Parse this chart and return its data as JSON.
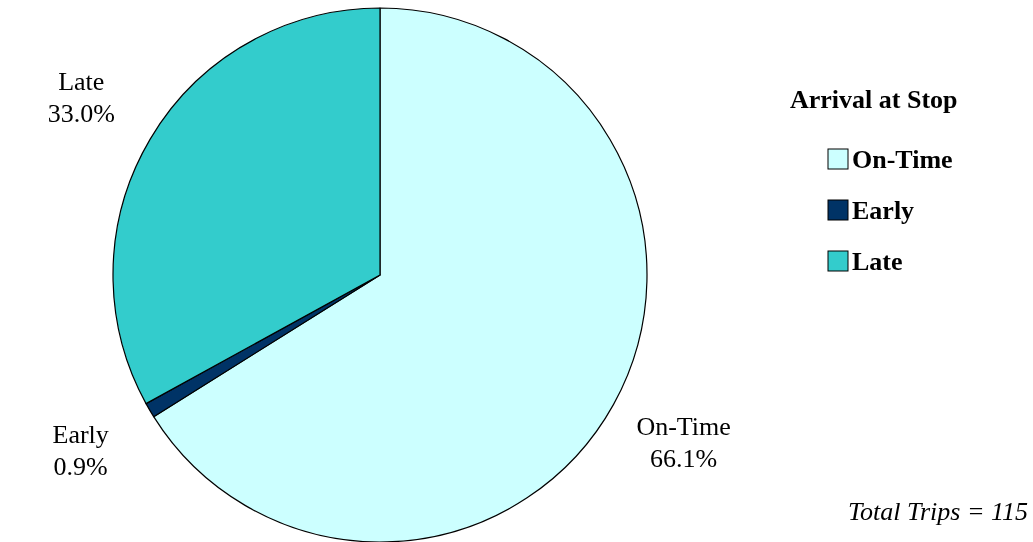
{
  "chart_data": {
    "type": "pie",
    "categories": [
      "On-Time",
      "Early",
      "Late"
    ],
    "values": [
      66.1,
      0.9,
      33.0
    ],
    "colors": [
      "#ccffff",
      "#003366",
      "#33cccc"
    ],
    "value_labels": [
      "66.1%",
      "0.9%",
      "33.0%"
    ],
    "legend": "right",
    "legend_title": "Arrival at Stop",
    "annotations": [
      "Total Trips = 115"
    ]
  }
}
